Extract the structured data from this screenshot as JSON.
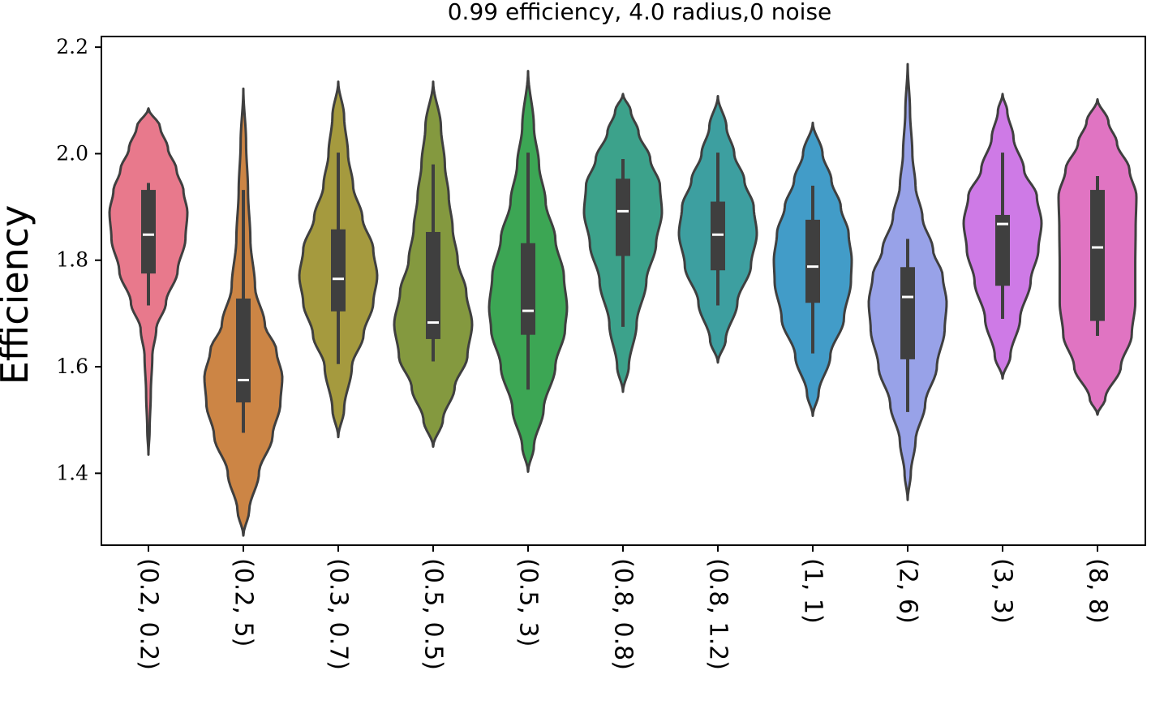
{
  "chart_data": {
    "type": "violin",
    "title": "0.99 efficiency, 4.0 radius,0 noise",
    "xlabel": "",
    "ylabel": "Efficiency",
    "ylim": [
      1.265,
      2.22
    ],
    "yticks": [
      1.4,
      1.6,
      1.8,
      2.0,
      2.2
    ],
    "ytick_labels": [
      "1.4",
      "1.6",
      "1.8",
      "2.0",
      "2.2"
    ],
    "grid": false,
    "categories": [
      "(0.2, 0.2)",
      "(0.2, 5)",
      "(0.3, 0.7)",
      "(0.5, 0.5)",
      "(0.5, 3)",
      "(0.8, 0.8)",
      "(0.8, 1.2)",
      "(1, 1)",
      "(2, 6)",
      "(3, 3)",
      "(8, 8)"
    ],
    "series": [
      {
        "name": "(0.2, 0.2)",
        "color": "#e8798c",
        "min": 1.435,
        "max": 2.085,
        "q1": 1.775,
        "median": 1.848,
        "q3": 1.932,
        "whisker_low": 1.715,
        "whisker_high": 1.945,
        "density": [
          [
            1.435,
            0.0
          ],
          [
            1.48,
            0.03
          ],
          [
            1.55,
            0.06
          ],
          [
            1.62,
            0.1
          ],
          [
            1.67,
            0.2
          ],
          [
            1.72,
            0.45
          ],
          [
            1.78,
            0.75
          ],
          [
            1.84,
            0.95
          ],
          [
            1.89,
            1.0
          ],
          [
            1.93,
            0.9
          ],
          [
            1.97,
            0.72
          ],
          [
            2.01,
            0.5
          ],
          [
            2.05,
            0.3
          ],
          [
            2.085,
            0.0
          ]
        ]
      },
      {
        "name": "(0.2, 5)",
        "color": "#cc8545",
        "min": 1.283,
        "max": 2.122,
        "q1": 1.533,
        "median": 1.575,
        "q3": 1.728,
        "whisker_low": 1.476,
        "whisker_high": 1.932,
        "density": [
          [
            1.283,
            0.0
          ],
          [
            1.33,
            0.15
          ],
          [
            1.4,
            0.4
          ],
          [
            1.47,
            0.75
          ],
          [
            1.53,
            0.95
          ],
          [
            1.58,
            1.0
          ],
          [
            1.63,
            0.85
          ],
          [
            1.68,
            0.55
          ],
          [
            1.75,
            0.3
          ],
          [
            1.84,
            0.18
          ],
          [
            1.93,
            0.12
          ],
          [
            2.02,
            0.07
          ],
          [
            2.122,
            0.0
          ]
        ]
      },
      {
        "name": "(0.3, 0.7)",
        "color": "#a59a3e",
        "min": 1.468,
        "max": 2.135,
        "q1": 1.704,
        "median": 1.765,
        "q3": 1.858,
        "whisker_low": 1.605,
        "whisker_high": 2.002,
        "density": [
          [
            1.468,
            0.0
          ],
          [
            1.52,
            0.15
          ],
          [
            1.6,
            0.35
          ],
          [
            1.66,
            0.65
          ],
          [
            1.72,
            0.9
          ],
          [
            1.77,
            1.0
          ],
          [
            1.82,
            0.9
          ],
          [
            1.88,
            0.62
          ],
          [
            1.94,
            0.38
          ],
          [
            2.0,
            0.25
          ],
          [
            2.07,
            0.15
          ],
          [
            2.135,
            0.0
          ]
        ]
      },
      {
        "name": "(0.5, 0.5)",
        "color": "#84993f",
        "min": 1.45,
        "max": 2.135,
        "q1": 1.652,
        "median": 1.683,
        "q3": 1.853,
        "whisker_low": 1.61,
        "whisker_high": 1.98,
        "density": [
          [
            1.45,
            0.0
          ],
          [
            1.5,
            0.25
          ],
          [
            1.56,
            0.55
          ],
          [
            1.62,
            0.88
          ],
          [
            1.68,
            1.0
          ],
          [
            1.74,
            0.85
          ],
          [
            1.8,
            0.63
          ],
          [
            1.86,
            0.5
          ],
          [
            1.92,
            0.4
          ],
          [
            1.98,
            0.3
          ],
          [
            2.05,
            0.2
          ],
          [
            2.135,
            0.0
          ]
        ]
      },
      {
        "name": "(0.5, 3)",
        "color": "#3ca654",
        "min": 1.403,
        "max": 2.155,
        "q1": 1.66,
        "median": 1.705,
        "q3": 1.832,
        "whisker_low": 1.557,
        "whisker_high": 2.002,
        "density": [
          [
            1.403,
            0.0
          ],
          [
            1.45,
            0.15
          ],
          [
            1.52,
            0.4
          ],
          [
            1.6,
            0.7
          ],
          [
            1.67,
            0.95
          ],
          [
            1.71,
            1.0
          ],
          [
            1.77,
            0.92
          ],
          [
            1.84,
            0.7
          ],
          [
            1.91,
            0.45
          ],
          [
            1.98,
            0.28
          ],
          [
            2.05,
            0.15
          ],
          [
            2.155,
            0.0
          ]
        ]
      },
      {
        "name": "(0.8, 0.8)",
        "color": "#3ca28b",
        "min": 1.553,
        "max": 2.112,
        "q1": 1.808,
        "median": 1.892,
        "q3": 1.953,
        "whisker_low": 1.675,
        "whisker_high": 1.99,
        "density": [
          [
            1.553,
            0.0
          ],
          [
            1.6,
            0.15
          ],
          [
            1.68,
            0.35
          ],
          [
            1.76,
            0.6
          ],
          [
            1.83,
            0.85
          ],
          [
            1.89,
            1.0
          ],
          [
            1.94,
            0.95
          ],
          [
            1.99,
            0.7
          ],
          [
            2.04,
            0.4
          ],
          [
            2.08,
            0.2
          ],
          [
            2.112,
            0.0
          ]
        ]
      },
      {
        "name": "(0.8, 1.2)",
        "color": "#3d9fa0",
        "min": 1.608,
        "max": 2.108,
        "q1": 1.781,
        "median": 1.848,
        "q3": 1.91,
        "whisker_low": 1.715,
        "whisker_high": 2.002,
        "density": [
          [
            1.608,
            0.0
          ],
          [
            1.65,
            0.2
          ],
          [
            1.72,
            0.5
          ],
          [
            1.79,
            0.85
          ],
          [
            1.85,
            1.0
          ],
          [
            1.9,
            0.92
          ],
          [
            1.95,
            0.68
          ],
          [
            2.0,
            0.42
          ],
          [
            2.05,
            0.22
          ],
          [
            2.108,
            0.0
          ]
        ]
      },
      {
        "name": "(1, 1)",
        "color": "#429cc8",
        "min": 1.508,
        "max": 2.058,
        "q1": 1.72,
        "median": 1.788,
        "q3": 1.876,
        "whisker_low": 1.625,
        "whisker_high": 1.94,
        "density": [
          [
            1.508,
            0.0
          ],
          [
            1.55,
            0.15
          ],
          [
            1.62,
            0.45
          ],
          [
            1.69,
            0.8
          ],
          [
            1.76,
            0.98
          ],
          [
            1.8,
            1.0
          ],
          [
            1.85,
            0.92
          ],
          [
            1.9,
            0.72
          ],
          [
            1.95,
            0.48
          ],
          [
            2.0,
            0.25
          ],
          [
            2.058,
            0.0
          ]
        ]
      },
      {
        "name": "(2, 6)",
        "color": "#98a2e8",
        "min": 1.35,
        "max": 2.168,
        "q1": 1.614,
        "median": 1.731,
        "q3": 1.787,
        "whisker_low": 1.515,
        "whisker_high": 1.84,
        "density": [
          [
            1.35,
            0.0
          ],
          [
            1.4,
            0.08
          ],
          [
            1.46,
            0.2
          ],
          [
            1.53,
            0.45
          ],
          [
            1.6,
            0.75
          ],
          [
            1.67,
            0.95
          ],
          [
            1.72,
            1.0
          ],
          [
            1.77,
            0.9
          ],
          [
            1.82,
            0.65
          ],
          [
            1.88,
            0.38
          ],
          [
            1.94,
            0.2
          ],
          [
            2.0,
            0.12
          ],
          [
            2.08,
            0.06
          ],
          [
            2.168,
            0.0
          ]
        ]
      },
      {
        "name": "(3, 3)",
        "color": "#ce7ae6",
        "min": 1.578,
        "max": 2.112,
        "q1": 1.752,
        "median": 1.868,
        "q3": 1.885,
        "whisker_low": 1.69,
        "whisker_high": 2.002,
        "density": [
          [
            1.578,
            0.0
          ],
          [
            1.62,
            0.2
          ],
          [
            1.69,
            0.45
          ],
          [
            1.76,
            0.72
          ],
          [
            1.82,
            0.92
          ],
          [
            1.87,
            1.0
          ],
          [
            1.92,
            0.88
          ],
          [
            1.97,
            0.55
          ],
          [
            2.03,
            0.28
          ],
          [
            2.08,
            0.12
          ],
          [
            2.112,
            0.0
          ]
        ]
      },
      {
        "name": "(8, 8)",
        "color": "#e074c2",
        "min": 1.51,
        "max": 2.102,
        "q1": 1.686,
        "median": 1.824,
        "q3": 1.932,
        "whisker_low": 1.658,
        "whisker_high": 1.958,
        "density": [
          [
            1.51,
            0.0
          ],
          [
            1.54,
            0.2
          ],
          [
            1.6,
            0.6
          ],
          [
            1.66,
            0.88
          ],
          [
            1.72,
            0.97
          ],
          [
            1.79,
            0.97
          ],
          [
            1.86,
            0.98
          ],
          [
            1.92,
            1.0
          ],
          [
            1.97,
            0.82
          ],
          [
            2.02,
            0.5
          ],
          [
            2.06,
            0.28
          ],
          [
            2.102,
            0.0
          ]
        ]
      }
    ]
  }
}
